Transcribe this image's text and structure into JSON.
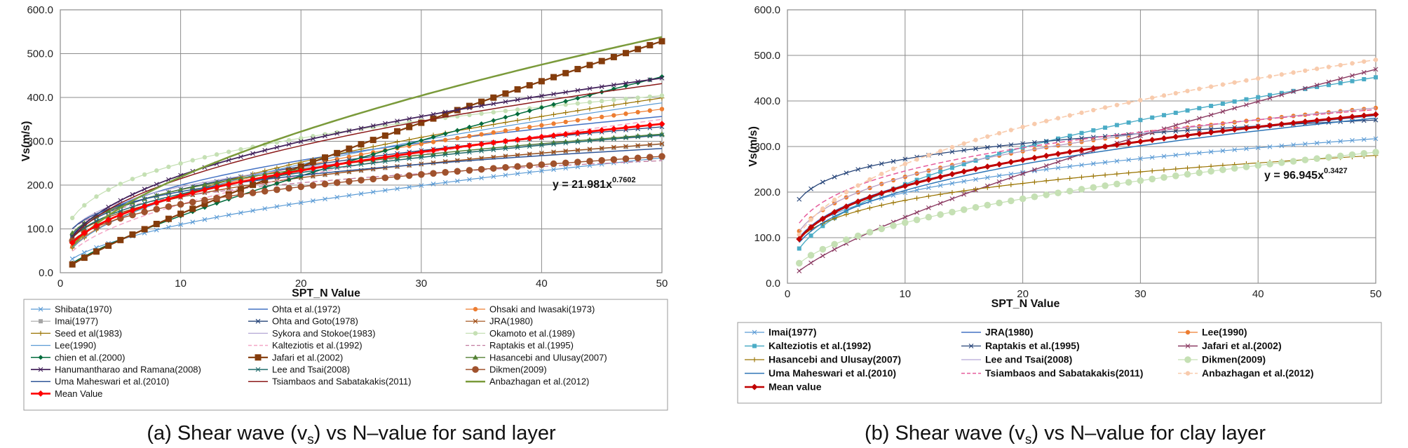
{
  "chart_data": [
    {
      "type": "line",
      "title": "",
      "xlabel": "SPT_N Value",
      "ylabel": "Vs(m/s)",
      "xlim": [
        0,
        50
      ],
      "ylim": [
        0,
        600
      ],
      "xticks": [
        "0",
        "10",
        "20",
        "30",
        "40",
        "50"
      ],
      "yticks": [
        "0.0",
        "100.0",
        "200.0",
        "300.0",
        "400.0",
        "500.0",
        "600.0"
      ],
      "grid": true,
      "legend_position": "bottom",
      "equation": "y = 21.981x",
      "equation_exponent": "0.7602",
      "caption": "(a) Shear wave (vs) vs N-value for sand layer",
      "caption_parts": {
        "before": "(a) Shear wave (v",
        "sub": "s",
        "after": ") vs N–value for sand layer"
      },
      "series": [
        {
          "name": "Shibata(1970)",
          "a": 31.7,
          "b": 0.54,
          "color": "#5b9bd5",
          "marker": "x",
          "width": 1.2,
          "dash": ""
        },
        {
          "name": "Ohta et al.(1972)",
          "a": 87.2,
          "b": 0.36,
          "color": "#4472c4",
          "marker": "",
          "width": 1.5,
          "dash": ""
        },
        {
          "name": "Ohsaki and Iwasaki(1973)",
          "a": 59.4,
          "b": 0.47,
          "color": "#ed7d31",
          "marker": "o",
          "width": 1.2,
          "dash": ""
        },
        {
          "name": "Imai(1977)",
          "a": 80.6,
          "b": 0.33,
          "color": "#a5a5a5",
          "marker": "s",
          "width": 1.2,
          "dash": ""
        },
        {
          "name": "Ohta and Goto(1978)",
          "a": 85.35,
          "b": 0.348,
          "color": "#264478",
          "marker": "x",
          "width": 1.3,
          "dash": ""
        },
        {
          "name": "JRA(1980)",
          "a": 80.0,
          "b": 0.333,
          "color": "#9e480e",
          "marker": "x",
          "width": 1.2,
          "dash": ""
        },
        {
          "name": "Seed et al(1983)",
          "a": 56.4,
          "b": 0.5,
          "color": "#997300",
          "marker": "+",
          "width": 1.2,
          "dash": ""
        },
        {
          "name": "Sykora and Stokoe(1983)",
          "a": 100.5,
          "b": 0.29,
          "color": "#b4a7d6",
          "marker": "",
          "width": 1.2,
          "dash": ""
        },
        {
          "name": "Okamoto et al.(1989)",
          "a": 125.0,
          "b": 0.3,
          "color": "#c5e0b4",
          "marker": "o",
          "width": 1.2,
          "dash": ""
        },
        {
          "name": "Lee(1990)",
          "a": 57.0,
          "b": 0.49,
          "color": "#5b9bd5",
          "marker": "",
          "width": 1.2,
          "dash": ""
        },
        {
          "name": "Kalteziotis et al.(1992)",
          "a": 49.1,
          "b": 0.502,
          "color": "#f4a6c6",
          "marker": "",
          "width": 1.5,
          "dash": "7,4"
        },
        {
          "name": "Raptakis et al.(1995)",
          "a": 100.0,
          "b": 0.24,
          "color": "#c27ba0",
          "marker": "",
          "width": 1.3,
          "dash": "7,4"
        },
        {
          "name": "chien et al.(2000)",
          "a": 22.0,
          "b": 0.77,
          "color": "#006b3c",
          "marker": "d",
          "width": 1.5,
          "dash": ""
        },
        {
          "name": "Jafari et al.(2002)",
          "a": 19.0,
          "b": 0.85,
          "color": "#843c0c",
          "marker": "S",
          "width": 2.2,
          "dash": ""
        },
        {
          "name": "Hasancebi and Ulusay(2007)",
          "a": 90.8,
          "b": 0.319,
          "color": "#548235",
          "marker": "t",
          "width": 1.4,
          "dash": ""
        },
        {
          "name": "Hanumantharao and Ramana(2008)",
          "a": 82.6,
          "b": 0.43,
          "color": "#44235c",
          "marker": "x",
          "width": 1.8,
          "dash": ""
        },
        {
          "name": "Lee and Tsai(2008)",
          "a": 80.6,
          "b": 0.348,
          "color": "#1f6b6b",
          "marker": "x",
          "width": 1.5,
          "dash": ""
        },
        {
          "name": "Dikmen(2009)",
          "a": 73.0,
          "b": 0.33,
          "color": "#a0522d",
          "marker": "O",
          "width": 1.4,
          "dash": ""
        },
        {
          "name": "Uma Maheswari et al.(2010)",
          "a": 100.5,
          "b": 0.265,
          "color": "#2f5597",
          "marker": "",
          "width": 1.5,
          "dash": ""
        },
        {
          "name": "Tsiambaos and Sabatakakis(2011)",
          "a": 79.0,
          "b": 0.434,
          "color": "#8b1a1a",
          "marker": "",
          "width": 1.5,
          "dash": ""
        },
        {
          "name": "Anbazhagan et al.(2012)",
          "a": 60.17,
          "b": 0.56,
          "color": "#7a9a3a",
          "marker": "",
          "width": 2.5,
          "dash": ""
        },
        {
          "name": "Mean Value",
          "a": 68.3,
          "b": 0.41,
          "color": "#ff0000",
          "marker": "D",
          "width": 2.8,
          "dash": ""
        }
      ]
    },
    {
      "type": "line",
      "title": "",
      "xlabel": "SPT_N Value",
      "ylabel": "Vs(m/s)",
      "xlim": [
        0,
        50
      ],
      "ylim": [
        0,
        600
      ],
      "xticks": [
        "0",
        "10",
        "20",
        "30",
        "40",
        "50"
      ],
      "yticks": [
        "0.0",
        "100.0",
        "200.0",
        "300.0",
        "400.0",
        "500.0",
        "600.0"
      ],
      "grid": true,
      "legend_position": "bottom",
      "equation": "y = 96.945x",
      "equation_exponent": "0.3427",
      "caption": "(b) Shear wave (vs) vs N-value for clay layer",
      "caption_parts": {
        "before": "(b) Shear wave (v",
        "sub": "s",
        "after": ") vs N–value for clay layer"
      },
      "series": [
        {
          "name": "Imai(1977)",
          "a": 102.0,
          "b": 0.29,
          "color": "#5b9bd5",
          "marker": "x",
          "width": 1.2,
          "dash": ""
        },
        {
          "name": "JRA(1980)",
          "a": 100.0,
          "b": 0.333,
          "color": "#4472c4",
          "marker": "",
          "width": 1.5,
          "dash": ""
        },
        {
          "name": "Lee(1990)",
          "a": 114.4,
          "b": 0.31,
          "color": "#ed7d31",
          "marker": "o",
          "width": 1.2,
          "dash": ""
        },
        {
          "name": "Kalteziotis et al.(1992)",
          "a": 76.2,
          "b": 0.455,
          "color": "#4bacc6",
          "marker": "s",
          "width": 1.4,
          "dash": ""
        },
        {
          "name": "Raptakis et al.(1995)",
          "a": 184.2,
          "b": 0.17,
          "color": "#264478",
          "marker": "x",
          "width": 1.3,
          "dash": ""
        },
        {
          "name": "Jafari et al.(2002)",
          "a": 27.0,
          "b": 0.73,
          "color": "#8b3a62",
          "marker": "x",
          "width": 1.4,
          "dash": ""
        },
        {
          "name": "Hasancebi and Ulusay(2007)",
          "a": 97.89,
          "b": 0.269,
          "color": "#997300",
          "marker": "+",
          "width": 1.2,
          "dash": ""
        },
        {
          "name": "Lee and Tsai(2008)",
          "a": 114.43,
          "b": 0.31,
          "color": "#b4a7d6",
          "marker": "",
          "width": 1.2,
          "dash": ""
        },
        {
          "name": "Dikmen(2009)",
          "a": 44.0,
          "b": 0.48,
          "color": "#c5e0b4",
          "marker": "O",
          "width": 1.2,
          "dash": ""
        },
        {
          "name": "Uma Maheswari et al.(2010)",
          "a": 89.31,
          "b": 0.358,
          "color": "#2e75b6",
          "marker": "",
          "width": 1.5,
          "dash": ""
        },
        {
          "name": "Tsiambaos and Sabatakakis(2011)",
          "a": 132.0,
          "b": 0.271,
          "color": "#e65c9c",
          "marker": "",
          "width": 1.5,
          "dash": "7,4"
        },
        {
          "name": "Anbazhagan et al.(2012)",
          "a": 106.63,
          "b": 0.39,
          "color": "#f8cbad",
          "marker": "o",
          "width": 1.6,
          "dash": "7,4"
        },
        {
          "name": "Mean value",
          "a": 96.945,
          "b": 0.3427,
          "color": "#c00000",
          "marker": "D",
          "width": 3.0,
          "dash": ""
        }
      ]
    }
  ]
}
